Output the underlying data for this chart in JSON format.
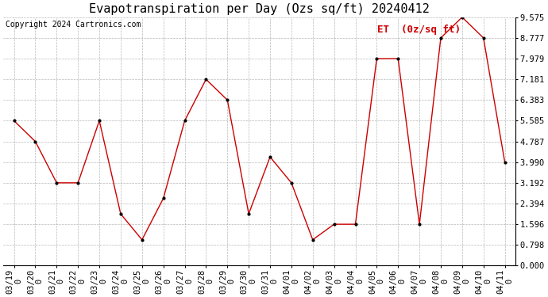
{
  "title": "Evapotranspiration per Day (Ozs sq/ft) 20240412",
  "copyright_text": "Copyright 2024 Cartronics.com",
  "legend_label": "ET  (0z/sq ft)",
  "x_labels": [
    "03/19",
    "03/20",
    "03/21",
    "03/22",
    "03/23",
    "03/24",
    "03/25",
    "03/26",
    "03/27",
    "03/28",
    "03/29",
    "03/30",
    "03/31",
    "04/01",
    "04/02",
    "04/03",
    "04/04",
    "04/05",
    "04/06",
    "04/07",
    "04/08",
    "04/09",
    "04/10",
    "04/11"
  ],
  "x_labels_row2": [
    "0",
    "0",
    "0",
    "0",
    "0",
    "0",
    "0",
    "0",
    "0",
    "0",
    "0",
    "0",
    "0",
    "0",
    "0",
    "0",
    "0",
    "0",
    "0",
    "0",
    "0",
    "0",
    "0",
    "0"
  ],
  "y_values": [
    5.585,
    4.787,
    3.192,
    3.192,
    5.585,
    1.994,
    0.998,
    2.594,
    5.585,
    7.181,
    6.383,
    1.996,
    4.19,
    3.192,
    0.998,
    1.596,
    1.596,
    7.979,
    7.979,
    1.596,
    8.777,
    9.575,
    8.777,
    3.99
  ],
  "line_color": "#cc0000",
  "marker_color": "#000000",
  "bg_color": "#ffffff",
  "grid_color": "#999999",
  "ylim": [
    0.0,
    9.575
  ],
  "yticks": [
    0.0,
    0.798,
    1.596,
    2.394,
    3.192,
    3.99,
    4.787,
    5.585,
    6.383,
    7.181,
    7.979,
    8.777,
    9.575
  ],
  "title_fontsize": 11,
  "tick_fontsize": 7.5,
  "legend_fontsize": 9,
  "copyright_fontsize": 7
}
